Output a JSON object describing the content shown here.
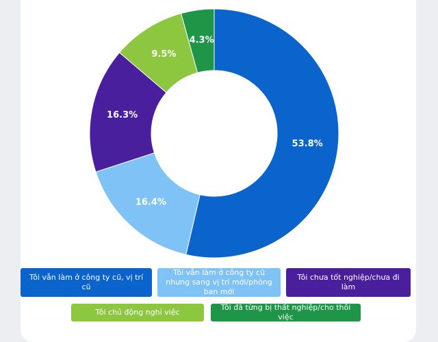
{
  "chart_data": {
    "type": "donut",
    "categories": [
      "Tôi vẫn làm ở công ty cũ, vị trí cũ",
      "Tôi vẫn làm ở công ty cũ nhưng sang vị trí mới/phòng ban mới",
      "Tôi chưa tốt nghiệp/chưa đi làm",
      "Tôi chủ động nghỉ việc",
      "Tôi đã từng bị thất nghiệp/cho thôi việc"
    ],
    "values": [
      53.8,
      16.4,
      16.3,
      9.5,
      4.3
    ],
    "value_labels": [
      "53.8%",
      "16.4%",
      "16.3%",
      "9.5%",
      "4.3%"
    ],
    "colors": [
      "#0a64cc",
      "#7fc2f6",
      "#4a1f9e",
      "#8dc63f",
      "#1f9548"
    ]
  }
}
